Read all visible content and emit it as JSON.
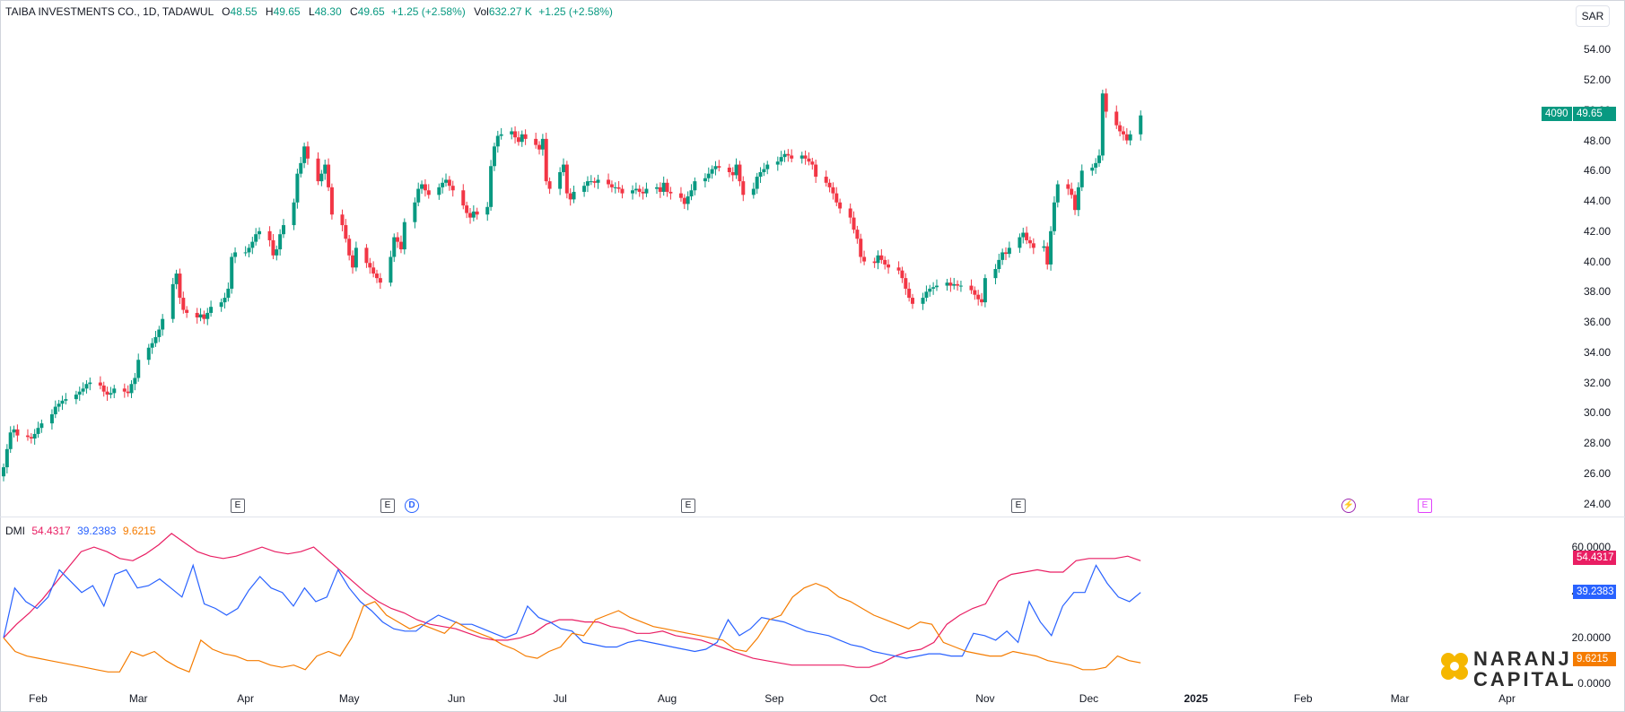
{
  "header": {
    "symbol": "TAIBA INVESTMENTS CO., 1D, TADAWUL",
    "open_label": "O",
    "open": "48.55",
    "high_label": "H",
    "high": "49.65",
    "low_label": "L",
    "low": "48.30",
    "close_label": "C",
    "close": "49.65",
    "change": "+1.25 (+2.58%)",
    "vol_label": "Vol",
    "volume": "632.27 K",
    "vol_change": "+1.25 (+2.58%)"
  },
  "currency_button": "SAR",
  "price_badge": {
    "volume_text": "4090",
    "price_text": "49.65"
  },
  "indicator": {
    "name": "DMI",
    "adx_value": "54.4317",
    "plus_di_value": "39.2383",
    "minus_di_value": "9.6215"
  },
  "events": [
    "E",
    "E",
    "D",
    "E",
    "E",
    "⚡",
    "E"
  ],
  "logo": {
    "line1": "NARANJ",
    "line2": "CAPITAL"
  },
  "colors": {
    "up": "#089981",
    "down": "#f23645",
    "adx": "#e91e63",
    "plus_di": "#2962ff",
    "minus_di": "#f57c00"
  },
  "chart_data": [
    {
      "type": "candlestick",
      "title": "",
      "y_ticks": [
        "24.00",
        "26.00",
        "28.00",
        "30.00",
        "32.00",
        "34.00",
        "36.00",
        "38.00",
        "40.00",
        "42.00",
        "44.00",
        "46.00",
        "48.00",
        "50.00",
        "52.00",
        "54.00"
      ],
      "ylim": [
        23.5,
        55.5
      ],
      "x_ticks": [
        "Feb",
        "Mar",
        "Apr",
        "May",
        "Jun",
        "Jul",
        "Aug",
        "Sep",
        "Oct",
        "Nov",
        "Dec",
        "2025",
        "Feb",
        "Mar",
        "Apr"
      ],
      "x_range": [
        "2024-01-22",
        "2025-04-18"
      ],
      "first_date": "2024-01-22",
      "trading_days_per_week": 5,
      "last_price": 49.65,
      "closes": [
        26.4,
        27.6,
        28.7,
        28.9,
        28.5,
        28.4,
        28.3,
        28.6,
        29.0,
        29.3,
        29.9,
        30.4,
        30.6,
        30.8,
        30.9,
        31.2,
        31.4,
        31.6,
        31.9,
        32.0,
        31.8,
        31.4,
        31.2,
        31.3,
        31.6,
        31.4,
        31.3,
        31.9,
        32.3,
        33.5,
        34.3,
        34.6,
        35.0,
        35.5,
        36.2,
        38.5,
        39.2,
        37.6,
        36.8,
        36.6,
        36.3,
        36.5,
        36.2,
        36.6,
        37.0,
        37.3,
        37.6,
        38.2,
        40.3,
        40.6,
        40.6,
        40.9,
        41.3,
        41.8,
        42.0,
        41.4,
        40.4,
        40.8,
        41.8,
        42.4,
        43.9,
        45.8,
        46.5,
        47.6,
        46.8,
        45.3,
        45.8,
        46.4,
        44.9,
        43.1,
        42.4,
        41.5,
        40.4,
        39.6,
        40.9,
        39.9,
        39.6,
        39.2,
        38.9,
        38.6,
        40.3,
        41.6,
        41.3,
        40.8,
        42.6,
        43.9,
        44.8,
        45.1,
        44.7,
        44.4,
        44.9,
        45.2,
        45.4,
        45.0,
        44.7,
        43.7,
        43.2,
        42.9,
        43.3,
        43.1,
        43.6,
        46.3,
        47.6,
        48.3,
        48.4,
        48.6,
        48.2,
        47.9,
        48.4,
        48.1,
        47.7,
        47.4,
        48.1,
        45.3,
        44.8,
        45.9,
        46.4,
        44.5,
        44.1,
        44.6,
        45.0,
        45.3,
        45.3,
        45.2,
        45.4,
        45.1,
        44.9,
        44.9,
        44.8,
        44.5,
        44.7,
        44.8,
        44.6,
        44.5,
        44.8,
        44.9,
        44.6,
        45.2,
        44.6,
        44.5,
        44.2,
        43.8,
        44.3,
        44.7,
        45.3,
        45.5,
        45.8,
        46.1,
        46.3,
        46.2,
        45.9,
        45.7,
        46.4,
        45.3,
        44.4,
        44.8,
        45.6,
        45.9,
        46.1,
        46.4,
        46.6,
        46.9,
        47.1,
        47.0,
        46.8,
        47.0,
        46.8,
        46.6,
        46.4,
        45.6,
        45.2,
        44.9,
        44.5,
        43.9,
        43.5,
        42.9,
        42.1,
        41.5,
        40.3,
        40.0,
        39.9,
        40.4,
        40.1,
        39.8,
        39.6,
        39.4,
        38.9,
        38.2,
        37.6,
        37.2,
        37.6,
        38.0,
        38.2,
        38.3,
        38.4,
        38.6,
        38.4,
        38.5,
        38.4,
        38.4,
        38.1,
        37.8,
        37.5,
        37.3,
        38.9,
        39.5,
        40.1,
        40.6,
        40.5,
        40.9,
        41.6,
        41.9,
        41.4,
        41.2,
        40.9,
        41.0,
        39.8,
        42.0,
        43.9,
        45.1,
        44.8,
        44.4,
        43.4,
        44.9,
        46.0,
        46.2,
        46.5,
        47.0,
        51.1,
        49.9,
        49.0,
        48.6,
        48.4,
        48.0,
        48.4,
        49.65
      ]
    },
    {
      "type": "line",
      "title": "",
      "y_ticks": [
        "0.0000",
        "20.0000",
        "40.0000",
        "60.0000"
      ],
      "ylim": [
        -1.2,
        64
      ],
      "series": [
        {
          "name": "",
          "values": [
            20,
            26,
            31,
            37,
            44,
            51,
            58,
            60,
            58,
            55,
            54,
            57,
            61,
            66,
            62,
            58,
            56,
            55,
            56,
            58,
            60,
            58,
            57,
            58,
            60,
            55,
            50,
            45,
            40,
            36,
            33,
            31,
            28,
            26,
            25,
            24,
            22,
            20,
            19,
            19,
            20,
            22,
            26,
            28,
            28,
            27,
            27,
            25,
            24,
            22,
            22,
            23,
            21,
            20,
            19,
            17,
            15,
            13,
            11,
            10,
            9,
            8,
            8,
            8,
            8,
            8,
            7,
            7,
            9,
            12,
            14,
            15,
            18,
            26,
            30,
            33,
            35,
            45,
            48,
            49,
            50,
            49,
            49,
            54,
            55,
            55,
            55,
            56,
            54
          ]
        },
        {
          "name": "",
          "values": [
            20,
            42,
            36,
            33,
            38,
            50,
            45,
            40,
            43,
            34,
            48,
            50,
            42,
            43,
            46,
            42,
            38,
            52,
            35,
            33,
            30,
            33,
            41,
            47,
            42,
            40,
            34,
            42,
            36,
            38,
            50,
            42,
            36,
            32,
            27,
            24,
            23,
            23,
            27,
            30,
            28,
            26,
            26,
            24,
            22,
            20,
            22,
            34,
            29,
            27,
            24,
            23,
            18,
            17,
            16,
            16,
            18,
            19,
            18,
            17,
            16,
            15,
            14,
            15,
            18,
            28,
            21,
            24,
            29,
            28,
            27,
            25,
            23,
            22,
            21,
            19,
            17,
            16,
            14,
            13,
            12,
            11,
            12,
            13,
            13,
            12,
            12,
            22,
            21,
            19,
            23,
            18,
            36,
            27,
            21,
            34,
            40,
            40,
            52,
            44,
            38,
            36,
            40
          ]
        },
        {
          "name": "",
          "values": [
            20,
            14,
            12,
            11,
            10,
            9,
            8,
            7,
            6,
            5,
            5,
            14,
            12,
            14,
            10,
            7,
            5,
            19,
            15,
            13,
            12,
            10,
            10,
            8,
            7,
            8,
            6,
            12,
            14,
            12,
            20,
            34,
            36,
            30,
            27,
            24,
            26,
            24,
            22,
            27,
            24,
            22,
            20,
            17,
            15,
            12,
            11,
            14,
            16,
            22,
            21,
            28,
            30,
            32,
            29,
            27,
            25,
            24,
            23,
            22,
            21,
            20,
            19,
            15,
            14,
            20,
            28,
            30,
            38,
            42,
            44,
            42,
            38,
            36,
            33,
            30,
            28,
            26,
            24,
            27,
            26,
            18,
            16,
            14,
            13,
            12,
            12,
            14,
            13,
            12,
            10,
            9,
            8,
            6,
            6,
            7,
            12,
            10,
            9
          ]
        }
      ]
    }
  ]
}
